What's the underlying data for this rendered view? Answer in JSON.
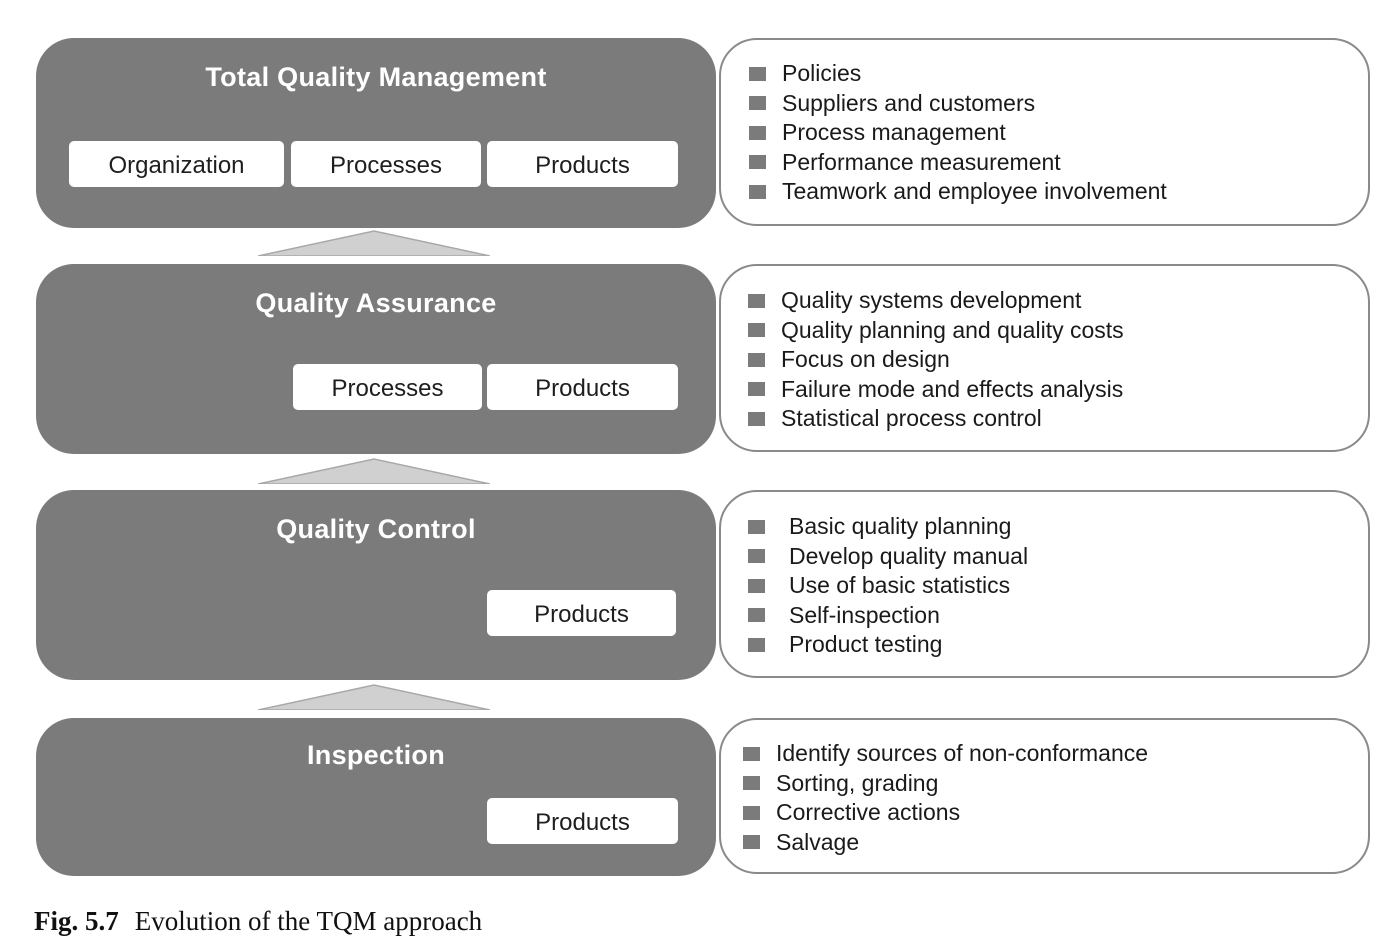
{
  "levels": [
    {
      "title": "Total Quality Management",
      "tags": [
        "Organization",
        "Processes",
        "Products"
      ],
      "bullets": [
        "Policies",
        "Suppliers and customers",
        "Process management",
        "Performance measurement",
        "Teamwork and employee involvement"
      ]
    },
    {
      "title": "Quality Assurance",
      "tags": [
        "Processes",
        "Products"
      ],
      "bullets": [
        "Quality systems development",
        "Quality planning and quality costs",
        "Focus on design",
        "Failure mode and effects analysis",
        "Statistical process control"
      ]
    },
    {
      "title": "Quality Control",
      "tags": [
        "Products"
      ],
      "bullets": [
        "Basic quality planning",
        "Develop quality manual",
        "Use of basic statistics",
        "Self-inspection",
        "Product testing"
      ]
    },
    {
      "title": "Inspection",
      "tags": [
        "Products"
      ],
      "bullets": [
        "Identify sources of non-conformance",
        "Sorting, grading",
        "Corrective actions",
        "Salvage"
      ]
    }
  ],
  "caption": {
    "number": "Fig. 5.7",
    "text": "Evolution of the TQM approach"
  },
  "colors": {
    "level_fill": "#7b7b7b",
    "arrow_fill": "#d0d0d0",
    "box_border": "#8a8a8a"
  }
}
